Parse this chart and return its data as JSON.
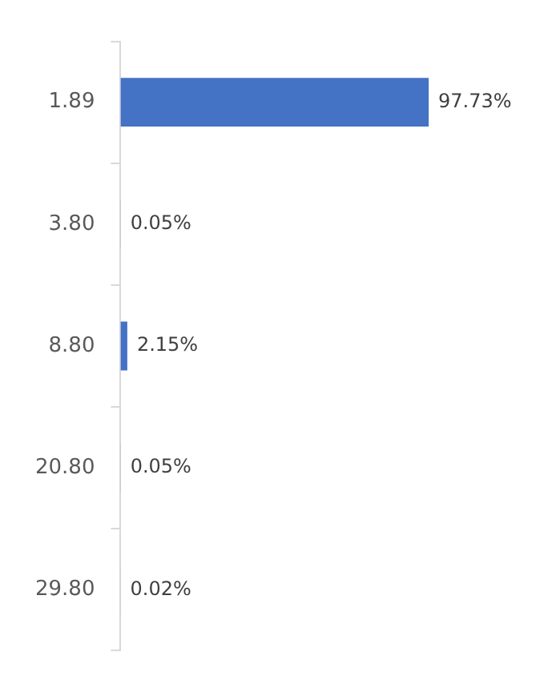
{
  "chart_data": {
    "type": "bar",
    "orientation": "horizontal",
    "categories": [
      "1.89",
      "3.80",
      "8.80",
      "20.80",
      "29.80"
    ],
    "series": [
      {
        "color": "#4472c4",
        "values": [
          97.73,
          0.05,
          2.15,
          0.05,
          0.02
        ],
        "value_labels": [
          "97.73%",
          "0.05%",
          "2.15%",
          "0.05%",
          "0.02%"
        ]
      }
    ],
    "tick_labels": "y",
    "grid": false,
    "legend": false
  }
}
